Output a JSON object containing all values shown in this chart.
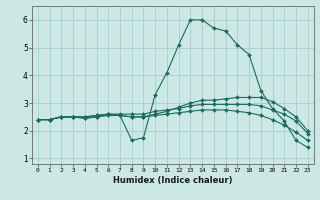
{
  "xlabel": "Humidex (Indice chaleur)",
  "xlim": [
    -0.5,
    23.5
  ],
  "ylim": [
    0.8,
    6.5
  ],
  "yticks": [
    1,
    2,
    3,
    4,
    5,
    6
  ],
  "xticks": [
    0,
    1,
    2,
    3,
    4,
    5,
    6,
    7,
    8,
    9,
    10,
    11,
    12,
    13,
    14,
    15,
    16,
    17,
    18,
    19,
    20,
    21,
    22,
    23
  ],
  "bg_color": "#cce8e4",
  "grid_color": "#aaccca",
  "line_color": "#1a6b60",
  "lines": [
    {
      "x": [
        0,
        1,
        2,
        3,
        4,
        5,
        6,
        7,
        8,
        9,
        10,
        11,
        12,
        13,
        14,
        15,
        16,
        17,
        18,
        19,
        20,
        21,
        22,
        23
      ],
      "y": [
        2.4,
        2.4,
        2.5,
        2.5,
        2.5,
        2.55,
        2.6,
        2.55,
        1.65,
        1.75,
        3.3,
        4.1,
        5.1,
        6.0,
        6.0,
        5.7,
        5.6,
        5.1,
        4.75,
        3.45,
        2.8,
        2.35,
        1.65,
        1.4
      ]
    },
    {
      "x": [
        0,
        1,
        2,
        3,
        4,
        5,
        6,
        7,
        8,
        9,
        10,
        11,
        12,
        13,
        14,
        15,
        16,
        17,
        18,
        19,
        20,
        21,
        22,
        23
      ],
      "y": [
        2.4,
        2.4,
        2.5,
        2.5,
        2.5,
        2.55,
        2.6,
        2.55,
        2.5,
        2.5,
        2.6,
        2.7,
        2.85,
        3.0,
        3.1,
        3.1,
        3.15,
        3.2,
        3.2,
        3.2,
        3.05,
        2.8,
        2.5,
        2.0
      ]
    },
    {
      "x": [
        0,
        1,
        2,
        3,
        4,
        5,
        6,
        7,
        8,
        9,
        10,
        11,
        12,
        13,
        14,
        15,
        16,
        17,
        18,
        19,
        20,
        21,
        22,
        23
      ],
      "y": [
        2.4,
        2.4,
        2.5,
        2.5,
        2.45,
        2.5,
        2.6,
        2.6,
        2.6,
        2.6,
        2.7,
        2.75,
        2.8,
        2.9,
        2.95,
        2.95,
        2.95,
        2.95,
        2.95,
        2.9,
        2.75,
        2.6,
        2.35,
        1.9
      ]
    },
    {
      "x": [
        0,
        1,
        2,
        3,
        4,
        5,
        6,
        7,
        8,
        9,
        10,
        11,
        12,
        13,
        14,
        15,
        16,
        17,
        18,
        19,
        20,
        21,
        22,
        23
      ],
      "y": [
        2.4,
        2.4,
        2.5,
        2.5,
        2.45,
        2.5,
        2.55,
        2.55,
        2.5,
        2.5,
        2.55,
        2.6,
        2.65,
        2.7,
        2.75,
        2.75,
        2.75,
        2.7,
        2.65,
        2.55,
        2.4,
        2.2,
        1.95,
        1.65
      ]
    }
  ]
}
